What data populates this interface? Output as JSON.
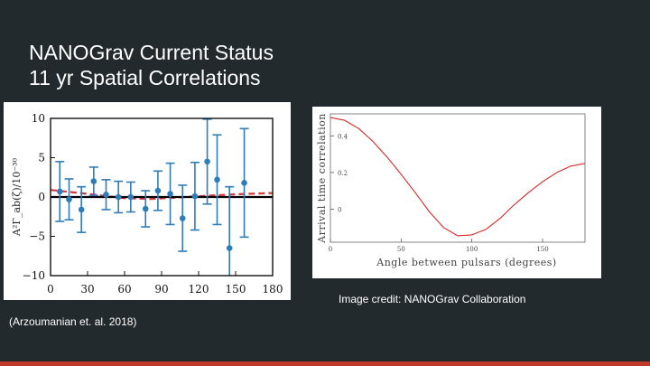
{
  "slide": {
    "title_line1": "NANOGrav Current Status",
    "title_line2": "11 yr Spatial Correlations",
    "image_credit": "Image credit: NANOGrav Collaboration",
    "citation": "(Arzoumanian et. al. 2018)",
    "accent_color": "#c0392b",
    "background_color": "#232a2d"
  },
  "chart_data": [
    {
      "type": "scatter",
      "title": "",
      "xlabel": "",
      "ylabel": "A²Γ_ab(ζ)/10⁻³⁰",
      "xlim": [
        0,
        180
      ],
      "ylim": [
        -10,
        10
      ],
      "x_ticks": [
        "0",
        "30",
        "60",
        "90",
        "120",
        "150",
        "180"
      ],
      "y_ticks": [
        "10",
        "5",
        "0",
        "−5",
        "−10"
      ],
      "series": [
        {
          "name": "binned correlations",
          "color": "#2e7cb8",
          "x": [
            7.5,
            15,
            25,
            35,
            45,
            55,
            65,
            77,
            87,
            97,
            107,
            117,
            127,
            135,
            145,
            157
          ],
          "y": [
            0.7,
            -0.3,
            -1.6,
            2.0,
            0.3,
            0.0,
            0.0,
            -1.5,
            0.8,
            0.4,
            -2.7,
            0.1,
            4.5,
            2.2,
            -6.5,
            1.8
          ],
          "err": [
            3.8,
            2.6,
            2.9,
            1.8,
            1.9,
            2.0,
            1.9,
            2.3,
            2.5,
            3.9,
            4.2,
            4.3,
            5.4,
            5.7,
            7.8,
            6.9
          ]
        },
        {
          "name": "zero line",
          "color": "#000000",
          "x": [
            0,
            180
          ],
          "y": [
            0,
            0
          ]
        },
        {
          "name": "Hellings-Downs model (dashed)",
          "color": "#d43a3a",
          "x": [
            0,
            30,
            60,
            82,
            120,
            150,
            180
          ],
          "y": [
            0.9,
            0.4,
            -0.15,
            -0.25,
            0.1,
            0.35,
            0.5
          ]
        }
      ]
    },
    {
      "type": "line",
      "title": "",
      "xlabel": "Angle between pulsars (degrees)",
      "ylabel": "Arrival time correlation",
      "xlim": [
        0,
        180
      ],
      "ylim": [
        -0.18,
        0.52
      ],
      "x_ticks": [
        "0",
        "50",
        "100",
        "150"
      ],
      "y_ticks": [
        "0.4",
        "0.2",
        "0"
      ],
      "series": [
        {
          "name": "Hellings-Downs curve",
          "color": "#d62728",
          "x": [
            0,
            10,
            20,
            30,
            40,
            50,
            60,
            70,
            80,
            90,
            100,
            110,
            120,
            130,
            140,
            150,
            160,
            170,
            180
          ],
          "y": [
            0.5,
            0.485,
            0.44,
            0.37,
            0.285,
            0.19,
            0.09,
            -0.015,
            -0.1,
            -0.145,
            -0.14,
            -0.11,
            -0.05,
            0.025,
            0.09,
            0.15,
            0.2,
            0.235,
            0.25
          ]
        }
      ]
    }
  ]
}
